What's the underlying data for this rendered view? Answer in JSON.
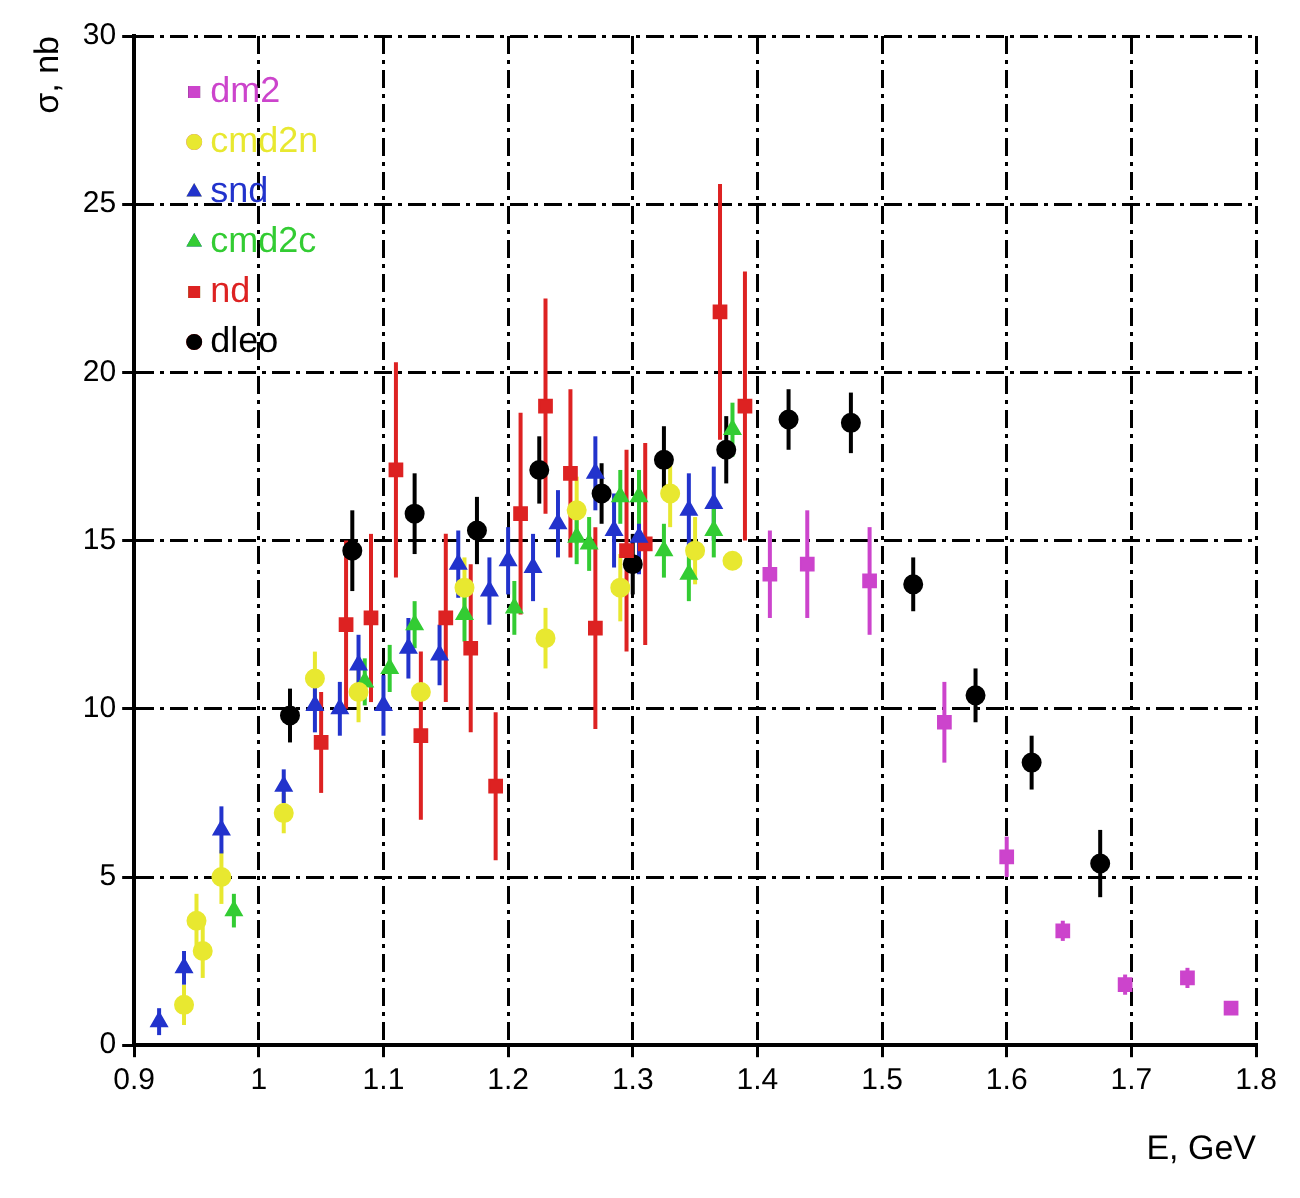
{
  "chart_data": {
    "type": "scatter",
    "xlabel": "E, GeV",
    "ylabel": "σ, nb",
    "xlim": [
      0.9,
      1.8
    ],
    "ylim": [
      0,
      30
    ],
    "xticks": [
      0.9,
      1,
      1.1,
      1.2,
      1.3,
      1.4,
      1.5,
      1.6,
      1.7,
      1.8
    ],
    "yticks": [
      0,
      5,
      10,
      15,
      20,
      25,
      30
    ],
    "grid": true,
    "legend": "top left",
    "series": [
      {
        "name": "dm2",
        "color": "#cc44cc",
        "marker": "square",
        "x": [
          1.41,
          1.44,
          1.49,
          1.55,
          1.6,
          1.645,
          1.695,
          1.745,
          1.78
        ],
        "values": [
          14.0,
          14.3,
          13.8,
          9.6,
          5.6,
          3.4,
          1.8,
          2.0,
          1.1
        ],
        "errors": [
          1.3,
          1.6,
          1.6,
          1.2,
          0.6,
          0.3,
          0.3,
          0.3,
          0.2
        ]
      },
      {
        "name": "cmd2n",
        "color": "#e8e830",
        "marker": "circle",
        "x": [
          0.94,
          0.95,
          0.955,
          0.97,
          1.02,
          1.045,
          1.08,
          1.13,
          1.165,
          1.23,
          1.255,
          1.29,
          1.33,
          1.35,
          1.38
        ],
        "values": [
          1.2,
          3.7,
          2.8,
          5.0,
          6.9,
          10.9,
          10.5,
          10.5,
          13.6,
          12.1,
          15.9,
          13.6,
          16.4,
          14.7,
          14.4
        ],
        "errors": [
          0.6,
          0.8,
          0.8,
          0.8,
          0.6,
          0.8,
          0.9,
          null,
          0.9,
          0.9,
          1.0,
          1.0,
          1.0,
          1.0,
          null
        ]
      },
      {
        "name": "snd",
        "color": "#2233cc",
        "marker": "triangle",
        "x": [
          0.92,
          0.94,
          0.97,
          1.02,
          1.045,
          1.065,
          1.08,
          1.1,
          1.12,
          1.145,
          1.16,
          1.185,
          1.2,
          1.22,
          1.24,
          1.27,
          1.285,
          1.305,
          1.345,
          1.365
        ],
        "values": [
          0.7,
          2.3,
          6.4,
          7.7,
          10.1,
          10.0,
          11.3,
          10.1,
          11.8,
          11.6,
          14.3,
          13.5,
          14.4,
          14.2,
          15.5,
          17.0,
          15.3,
          15.1,
          15.9,
          16.1
        ],
        "errors": [
          0.4,
          0.5,
          0.7,
          0.5,
          0.8,
          0.8,
          0.9,
          0.9,
          0.9,
          0.9,
          1.0,
          1.0,
          1.0,
          1.0,
          1.0,
          1.1,
          1.1,
          1.1,
          1.1,
          1.1
        ]
      },
      {
        "name": "cmd2c",
        "color": "#33cc33",
        "marker": "triangle",
        "x": [
          0.98,
          1.085,
          1.105,
          1.125,
          1.165,
          1.205,
          1.255,
          1.265,
          1.29,
          1.305,
          1.325,
          1.345,
          1.365,
          1.38
        ],
        "values": [
          4.0,
          10.8,
          11.2,
          12.5,
          12.8,
          13.0,
          15.1,
          14.9,
          16.3,
          16.3,
          14.7,
          14.0,
          15.3,
          18.3
        ],
        "errors": [
          0.5,
          0.7,
          0.7,
          0.7,
          0.8,
          0.8,
          0.8,
          0.8,
          0.8,
          0.8,
          0.8,
          0.8,
          0.8,
          0.8
        ]
      },
      {
        "name": "nd",
        "color": "#dd2222",
        "marker": "square",
        "x": [
          1.05,
          1.07,
          1.09,
          1.11,
          1.13,
          1.15,
          1.17,
          1.19,
          1.21,
          1.23,
          1.25,
          1.27,
          1.295,
          1.31,
          1.37,
          1.39
        ],
        "values": [
          9.0,
          12.5,
          12.7,
          17.1,
          9.2,
          12.7,
          11.8,
          7.7,
          15.8,
          19.0,
          17.0,
          12.4,
          14.7,
          14.9,
          21.8,
          19.0
        ],
        "errors": [
          1.5,
          2.5,
          2.5,
          3.2,
          2.5,
          2.5,
          2.5,
          2.2,
          3.0,
          3.2,
          2.5,
          3.0,
          3.0,
          3.0,
          3.8,
          4.0
        ]
      },
      {
        "name": "dleo",
        "color": "#000000",
        "marker": "circle",
        "x": [
          1.025,
          1.075,
          1.125,
          1.175,
          1.225,
          1.275,
          1.3,
          1.325,
          1.375,
          1.425,
          1.475,
          1.525,
          1.575,
          1.62,
          1.675
        ],
        "values": [
          9.8,
          14.7,
          15.8,
          15.3,
          17.1,
          16.4,
          14.3,
          17.4,
          17.7,
          18.6,
          18.5,
          13.7,
          10.4,
          8.4,
          5.4
        ],
        "errors": [
          0.8,
          1.2,
          1.2,
          1.0,
          1.0,
          0.9,
          0.9,
          1.0,
          1.0,
          0.9,
          0.9,
          0.8,
          0.8,
          0.8,
          1.0
        ]
      }
    ]
  }
}
